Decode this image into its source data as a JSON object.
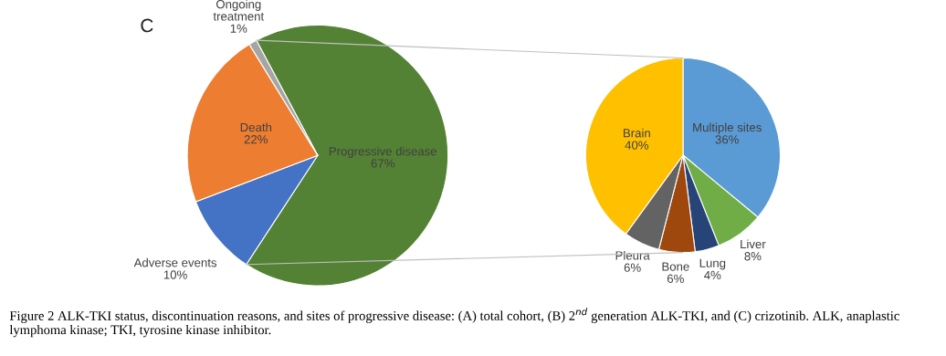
{
  "chart_data": [
    {
      "type": "pie",
      "annotations": [
        "C",
        "Figure 2 ALK-TKI status, discontinuation reasons, and sites of progressive disease: (A) total cohort, (B) 2$^{nd}$ generation ALK-TKI, and (C) crizotinib. ALK, anaplastic lymphoma kinase; TKI, tyrosine kinase inhibitor."
      ],
      "categories": [
        "Progressive disease",
        "Adverse events",
        "Death",
        "Ongoing\ntreatment"
      ],
      "values": [
        67,
        10,
        22,
        1
      ],
      "value_labels": [
        "67%",
        "10%",
        "22%",
        "1%"
      ],
      "colors": [
        "#548235",
        "#4472c4",
        "#ed7d31",
        "#a5a5a5"
      ]
    },
    {
      "type": "pie",
      "categories": [
        "Multiple sites",
        "Liver",
        "Lung",
        "Bone",
        "Pleura",
        "Brain"
      ],
      "values": [
        36,
        8,
        4,
        6,
        6,
        40
      ],
      "value_labels": [
        "36%",
        "8%",
        "4%",
        "6%",
        "6%",
        "40%"
      ],
      "colors": [
        "#5b9bd5",
        "#70ad47",
        "#264478",
        "#9e480e",
        "#636363",
        "#ffc000"
      ]
    }
  ]
}
